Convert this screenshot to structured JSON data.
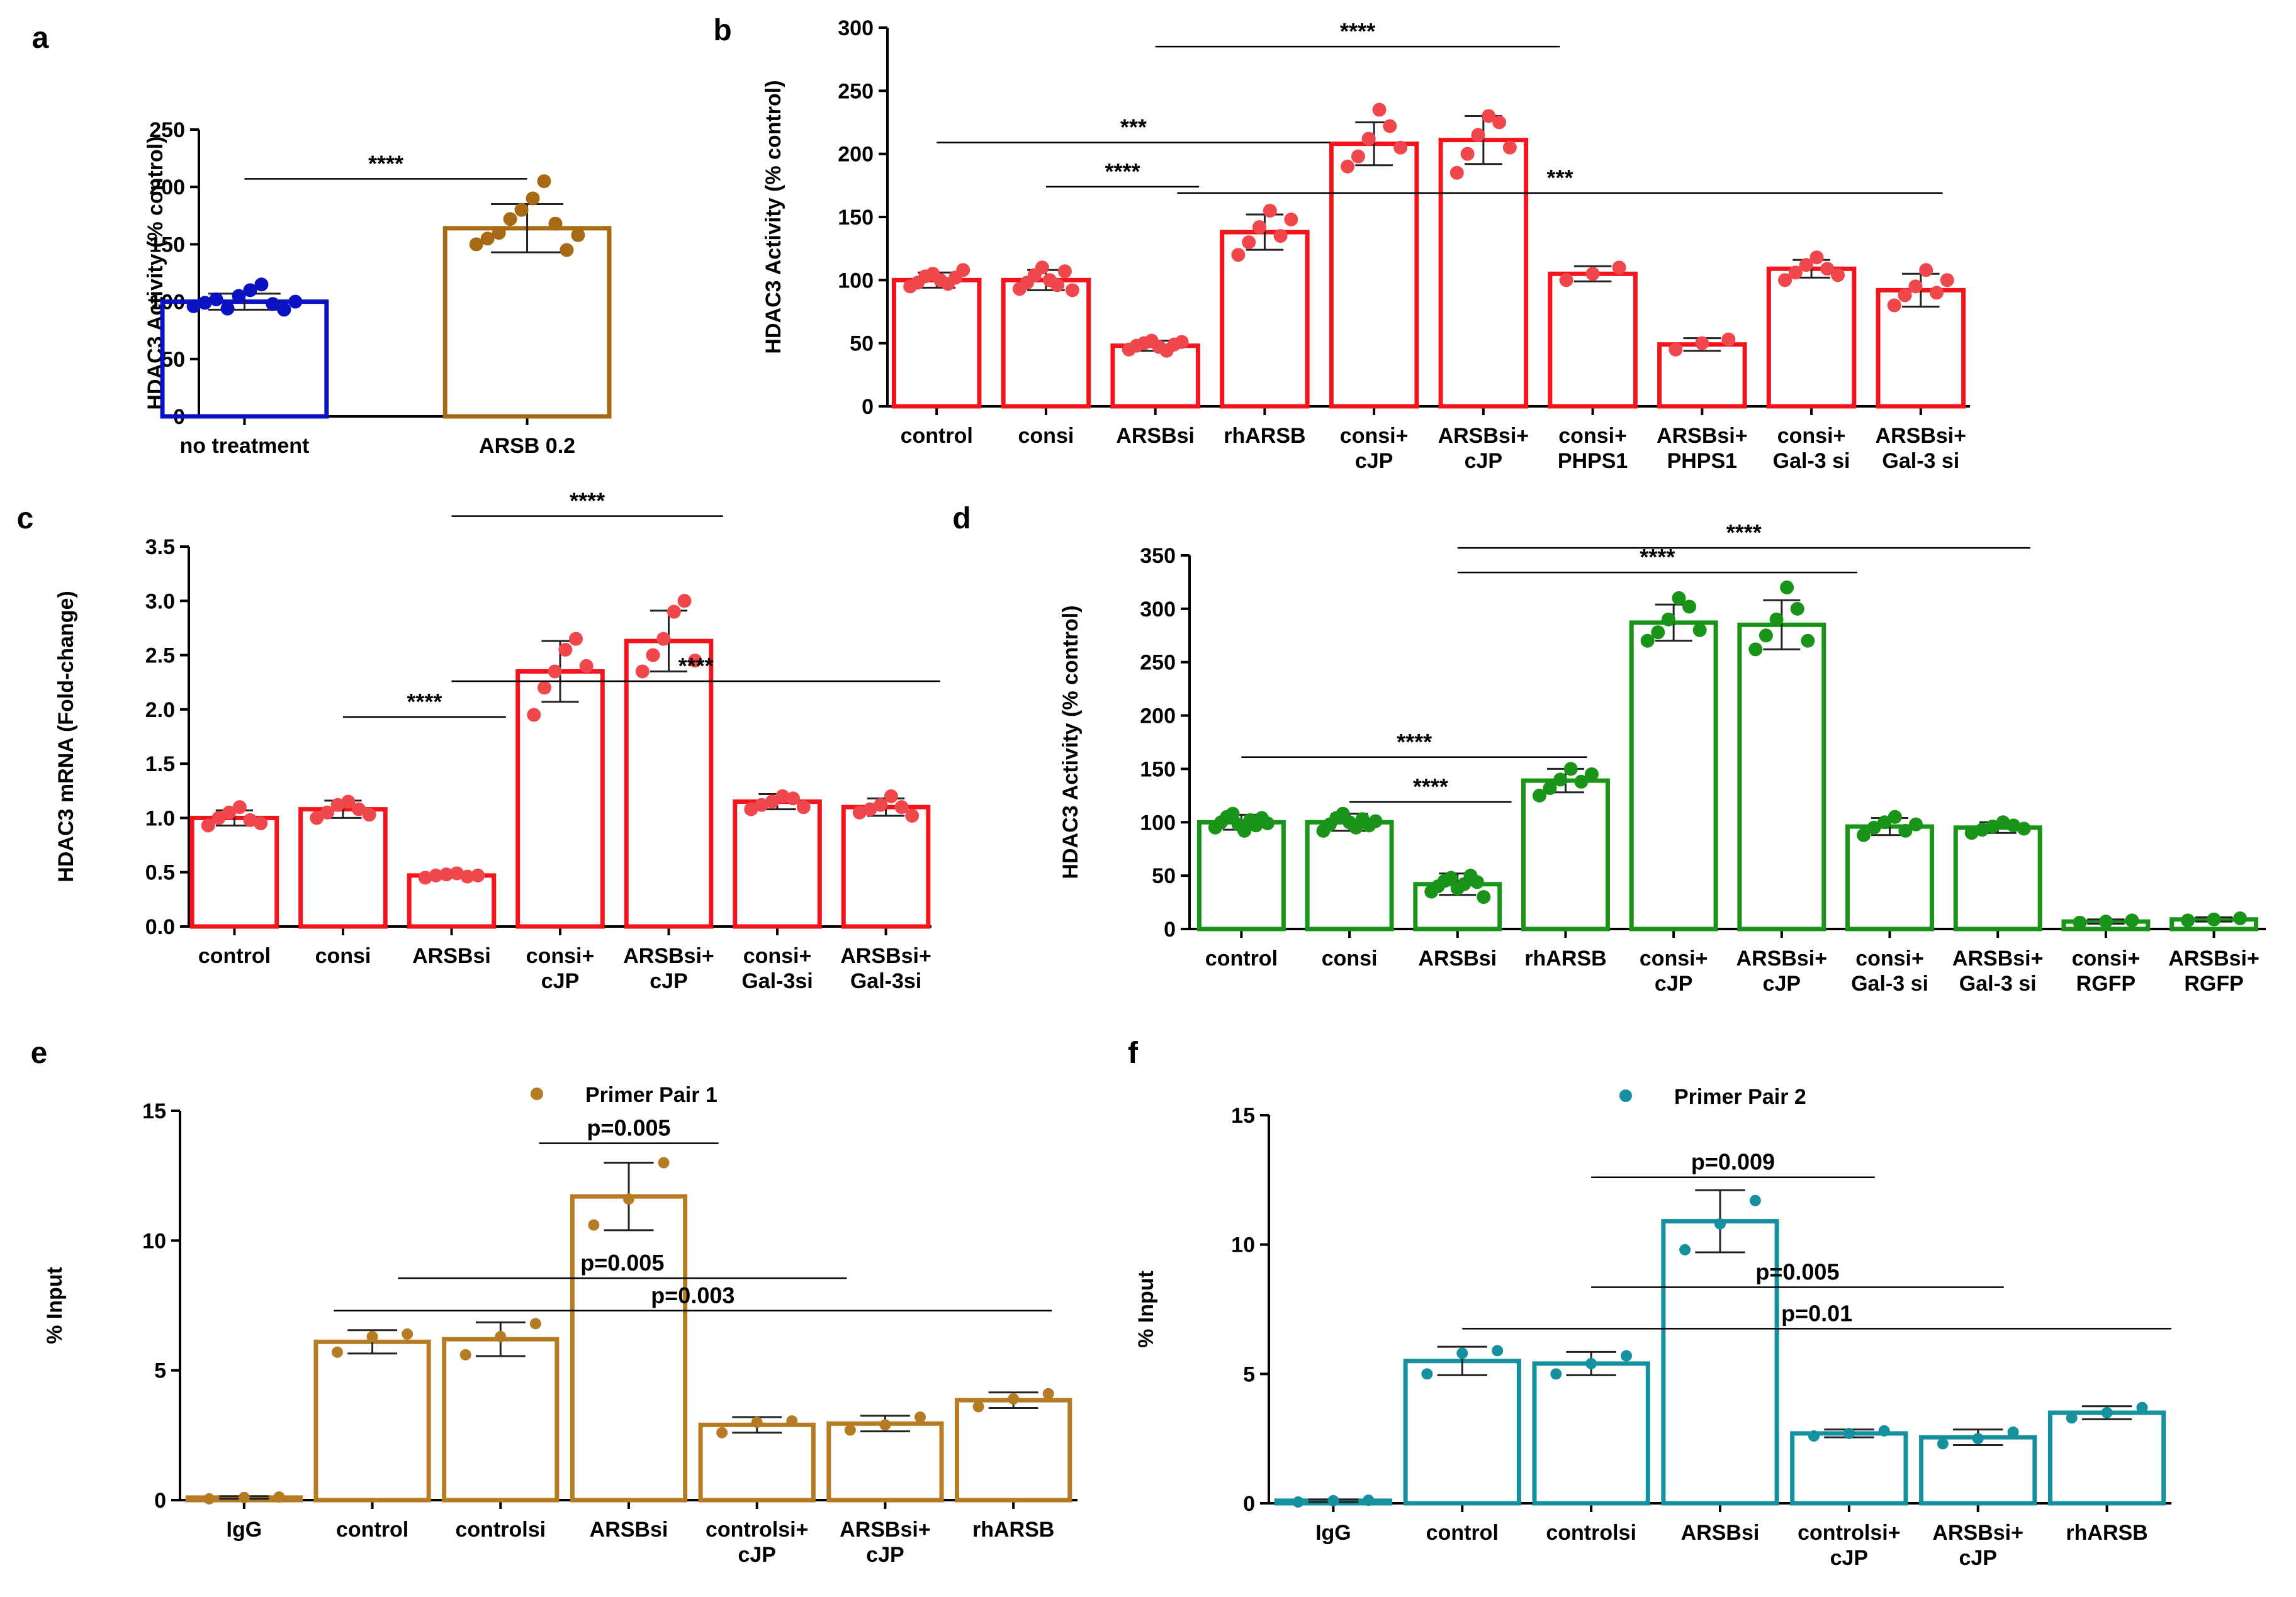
{
  "colors": {
    "a_blue": "#0b12c2",
    "a_brown": "#a66a14",
    "red": "#f3141c",
    "red_dot": "#f0474d",
    "green": "#1a9418",
    "brown": "#b57c24",
    "teal": "#14909e",
    "axis": "#000000"
  },
  "chart_data": [
    {
      "panel": "a",
      "type": "bar",
      "ylabel": "HDAC3 Activity (% control)",
      "ylim": [
        0,
        250
      ],
      "ticks": [
        0,
        50,
        100,
        150,
        200,
        250
      ],
      "categories": [
        [
          "no treatment"
        ],
        [
          "ARSB 0.2"
        ]
      ],
      "values": [
        100,
        164
      ],
      "errors": [
        7,
        21
      ],
      "bar_colors": [
        "#0b12c2",
        "#a66a14"
      ],
      "points": [
        [
          96,
          99,
          102,
          94,
          105,
          110,
          115,
          98,
          93,
          100
        ],
        [
          150,
          155,
          160,
          172,
          180,
          190,
          205,
          168,
          145,
          158
        ]
      ],
      "sig": [
        {
          "from": 0,
          "to": 1,
          "y": 207,
          "label": "****"
        }
      ]
    },
    {
      "panel": "b",
      "type": "bar",
      "ylabel": "HDAC3 Activity (% control)",
      "ylim": [
        0,
        300
      ],
      "ticks": [
        0,
        50,
        100,
        150,
        200,
        250,
        300
      ],
      "categories": [
        [
          "control"
        ],
        [
          "consi"
        ],
        [
          "ARSBsi"
        ],
        [
          "rhARSB"
        ],
        [
          "consi+",
          "cJP"
        ],
        [
          "ARSBsi+",
          "cJP"
        ],
        [
          "consi+",
          "PHPS1"
        ],
        [
          "ARSBsi+",
          "PHPS1"
        ],
        [
          "consi+",
          "Gal-3 si"
        ],
        [
          "ARSBsi+",
          "Gal-3 si"
        ]
      ],
      "values": [
        100,
        100,
        48,
        138,
        208,
        211,
        105,
        49,
        109,
        92
      ],
      "errors": [
        6,
        8,
        4,
        14,
        17,
        19,
        6,
        5,
        7,
        13
      ],
      "points": [
        [
          95,
          98,
          103,
          105,
          100,
          97,
          102,
          108
        ],
        [
          93,
          98,
          104,
          110,
          100,
          96,
          107,
          92
        ],
        [
          45,
          48,
          50,
          52,
          47,
          44,
          49,
          51
        ],
        [
          120,
          130,
          142,
          155,
          135,
          148
        ],
        [
          190,
          198,
          212,
          235,
          222,
          205
        ],
        [
          185,
          200,
          215,
          230,
          225,
          205
        ],
        [
          100,
          105,
          110
        ],
        [
          45,
          50,
          53
        ],
        [
          100,
          106,
          112,
          118,
          109,
          104
        ],
        [
          80,
          88,
          95,
          108,
          90,
          100
        ]
      ],
      "sig": [
        {
          "from": 2.0,
          "to": 5.7,
          "y": 285,
          "label": "****"
        },
        {
          "from": 0.0,
          "to": 3.6,
          "y": 209,
          "label": "***"
        },
        {
          "from": 1.0,
          "to": 2.4,
          "y": 174,
          "label": "****"
        },
        {
          "from": 2.2,
          "to": 9.2,
          "y": 169,
          "label": "***"
        }
      ]
    },
    {
      "panel": "c",
      "type": "bar",
      "ylabel": "HDAC3 mRNA (Fold-change)",
      "ylim": [
        0,
        3.5
      ],
      "ticks": [
        0.0,
        0.5,
        1.0,
        1.5,
        2.0,
        2.5,
        3.0,
        3.5
      ],
      "categories": [
        [
          "control"
        ],
        [
          "consi"
        ],
        [
          "ARSBsi"
        ],
        [
          "consi+",
          "cJP"
        ],
        [
          "ARSBsi+",
          "cJP"
        ],
        [
          "consi+",
          "Gal-3si"
        ],
        [
          "ARSBsi+",
          "Gal-3si"
        ]
      ],
      "values": [
        1.0,
        1.08,
        0.47,
        2.35,
        2.63,
        1.15,
        1.1
      ],
      "errors": [
        0.07,
        0.08,
        0.02,
        0.28,
        0.28,
        0.07,
        0.08
      ],
      "points": [
        [
          0.93,
          1.0,
          1.05,
          1.1,
          0.98,
          0.95
        ],
        [
          1.0,
          1.05,
          1.12,
          1.15,
          1.08,
          1.03
        ],
        [
          0.45,
          0.47,
          0.48,
          0.49,
          0.46,
          0.47
        ],
        [
          1.95,
          2.2,
          2.35,
          2.55,
          2.65,
          2.4
        ],
        [
          2.35,
          2.5,
          2.65,
          2.9,
          3.0,
          2.45
        ],
        [
          1.08,
          1.12,
          1.15,
          1.2,
          1.18,
          1.1
        ],
        [
          1.05,
          1.08,
          1.12,
          1.2,
          1.1,
          1.02
        ]
      ],
      "sig": [
        {
          "from": 2.0,
          "to": 4.5,
          "y": 3.78,
          "label": "****"
        },
        {
          "from": 1.0,
          "to": 2.5,
          "y": 1.93,
          "label": "****"
        },
        {
          "from": 2.0,
          "to": 6.5,
          "y": 2.26,
          "label": "****"
        }
      ]
    },
    {
      "panel": "d",
      "type": "bar",
      "ylabel": "HDAC3 Activity (% control)",
      "ylim": [
        0,
        350
      ],
      "ticks": [
        0,
        50,
        100,
        150,
        200,
        250,
        300,
        350
      ],
      "categories": [
        [
          "control"
        ],
        [
          "consi"
        ],
        [
          "ARSBsi"
        ],
        [
          "rhARSB"
        ],
        [
          "consi+",
          "cJP"
        ],
        [
          "ARSBsi+",
          "cJP"
        ],
        [
          "consi+",
          "Gal-3 si"
        ],
        [
          "ARSBsi+",
          "Gal-3 si"
        ],
        [
          "consi+",
          "RGFP"
        ],
        [
          "ARSBsi+",
          "RGFP"
        ]
      ],
      "values": [
        100,
        100,
        42,
        139,
        287,
        285,
        96,
        95,
        7,
        9
      ],
      "errors": [
        7,
        8,
        10,
        11,
        17,
        23,
        8,
        5,
        2,
        2
      ],
      "points": [
        [
          95,
          100,
          105,
          108,
          98,
          92,
          102,
          97,
          104,
          99
        ],
        [
          92,
          98,
          104,
          108,
          100,
          95,
          103,
          97,
          101
        ],
        [
          35,
          40,
          45,
          48,
          38,
          42,
          50,
          44,
          30
        ],
        [
          125,
          132,
          140,
          150,
          138,
          145
        ],
        [
          270,
          278,
          290,
          310,
          302,
          280
        ],
        [
          262,
          275,
          290,
          320,
          300,
          270
        ],
        [
          88,
          95,
          100,
          105,
          92,
          98
        ],
        [
          90,
          93,
          96,
          100,
          97,
          94
        ],
        [
          6,
          7,
          8
        ],
        [
          8,
          9,
          10
        ]
      ],
      "sig": [
        {
          "from": 2.0,
          "to": 7.3,
          "y": 357,
          "label": "****"
        },
        {
          "from": 2.0,
          "to": 5.7,
          "y": 334,
          "label": "****"
        },
        {
          "from": 0.0,
          "to": 3.2,
          "y": 161,
          "label": "****"
        },
        {
          "from": 1.0,
          "to": 2.5,
          "y": 119,
          "label": "****"
        }
      ]
    },
    {
      "panel": "e",
      "type": "bar",
      "ylabel": "% Input",
      "ylim": [
        0,
        15
      ],
      "ticks": [
        0,
        5,
        10,
        15
      ],
      "legend": "Primer Pair 1",
      "categories": [
        [
          "IgG"
        ],
        [
          "control"
        ],
        [
          "controlsi"
        ],
        [
          "ARSBsi"
        ],
        [
          "controlsi+",
          "cJP"
        ],
        [
          "ARSBsi+",
          "cJP"
        ],
        [
          "rhARSB"
        ]
      ],
      "values": [
        0.1,
        6.1,
        6.2,
        11.7,
        2.9,
        2.95,
        3.85
      ],
      "errors": [
        0.05,
        0.45,
        0.65,
        1.3,
        0.3,
        0.3,
        0.3
      ],
      "points": [
        [
          0.05,
          0.1,
          0.12
        ],
        [
          5.7,
          6.3,
          6.4
        ],
        [
          5.6,
          6.3,
          6.8
        ],
        [
          10.6,
          11.6,
          13.0
        ],
        [
          2.6,
          3.0,
          3.05
        ],
        [
          2.7,
          2.9,
          3.2
        ],
        [
          3.6,
          3.9,
          4.1
        ]
      ],
      "sig": [
        {
          "from": 2.3,
          "to": 3.7,
          "y": 13.75,
          "label": "p=0.005"
        },
        {
          "from": 1.2,
          "to": 4.7,
          "y": 8.55,
          "label": "p=0.005"
        },
        {
          "from": 0.7,
          "to": 6.3,
          "y": 7.3,
          "label": "p=0.003"
        }
      ]
    },
    {
      "panel": "f",
      "type": "bar",
      "ylabel": "% Input",
      "ylim": [
        0,
        15
      ],
      "ticks": [
        0,
        5,
        10,
        15
      ],
      "legend": "Primer Pair 2",
      "categories": [
        [
          "IgG"
        ],
        [
          "control"
        ],
        [
          "controlsi"
        ],
        [
          "ARSBsi"
        ],
        [
          "controlsi+",
          "cJP"
        ],
        [
          "ARSBsi+",
          "cJP"
        ],
        [
          "rhARSB"
        ]
      ],
      "values": [
        0.1,
        5.5,
        5.4,
        10.9,
        2.7,
        2.55,
        3.5
      ],
      "errors": [
        0.05,
        0.55,
        0.45,
        1.2,
        0.15,
        0.3,
        0.25
      ],
      "points": [
        [
          0.05,
          0.1,
          0.12
        ],
        [
          5.0,
          5.8,
          5.9
        ],
        [
          5.0,
          5.4,
          5.7
        ],
        [
          9.8,
          10.8,
          11.7
        ],
        [
          2.6,
          2.7,
          2.8
        ],
        [
          2.3,
          2.5,
          2.75
        ],
        [
          3.3,
          3.5,
          3.7
        ]
      ],
      "sig": [
        {
          "from": 2.0,
          "to": 4.2,
          "y": 12.6,
          "label": "p=0.009"
        },
        {
          "from": 2.0,
          "to": 5.2,
          "y": 8.35,
          "label": "p=0.005"
        },
        {
          "from": 1.0,
          "to": 6.5,
          "y": 6.75,
          "label": "p=0.01"
        }
      ]
    }
  ]
}
